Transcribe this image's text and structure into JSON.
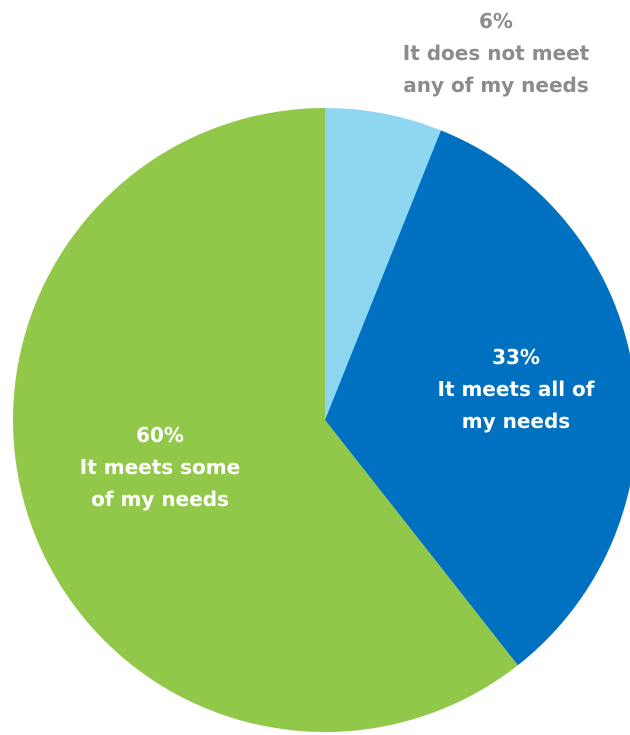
{
  "chart_data": {
    "type": "pie",
    "start": "12 o'clock",
    "direction": "clockwise",
    "slices": [
      {
        "value": 6,
        "percent_label": "6%",
        "label_lines": [
          "It does not meet",
          "any of my needs"
        ],
        "color": "#8fd6f1",
        "label_color": "#8c8c8c"
      },
      {
        "value": 33,
        "percent_label": "33%",
        "label_lines": [
          "It meets all of",
          "my needs"
        ],
        "color": "#0070c0",
        "label_color": "#ffffff"
      },
      {
        "value": 60,
        "percent_label": "60%",
        "label_lines": [
          "It meets some",
          "of my needs"
        ],
        "color": "#92c84a",
        "label_color": "#ffffff"
      }
    ]
  }
}
